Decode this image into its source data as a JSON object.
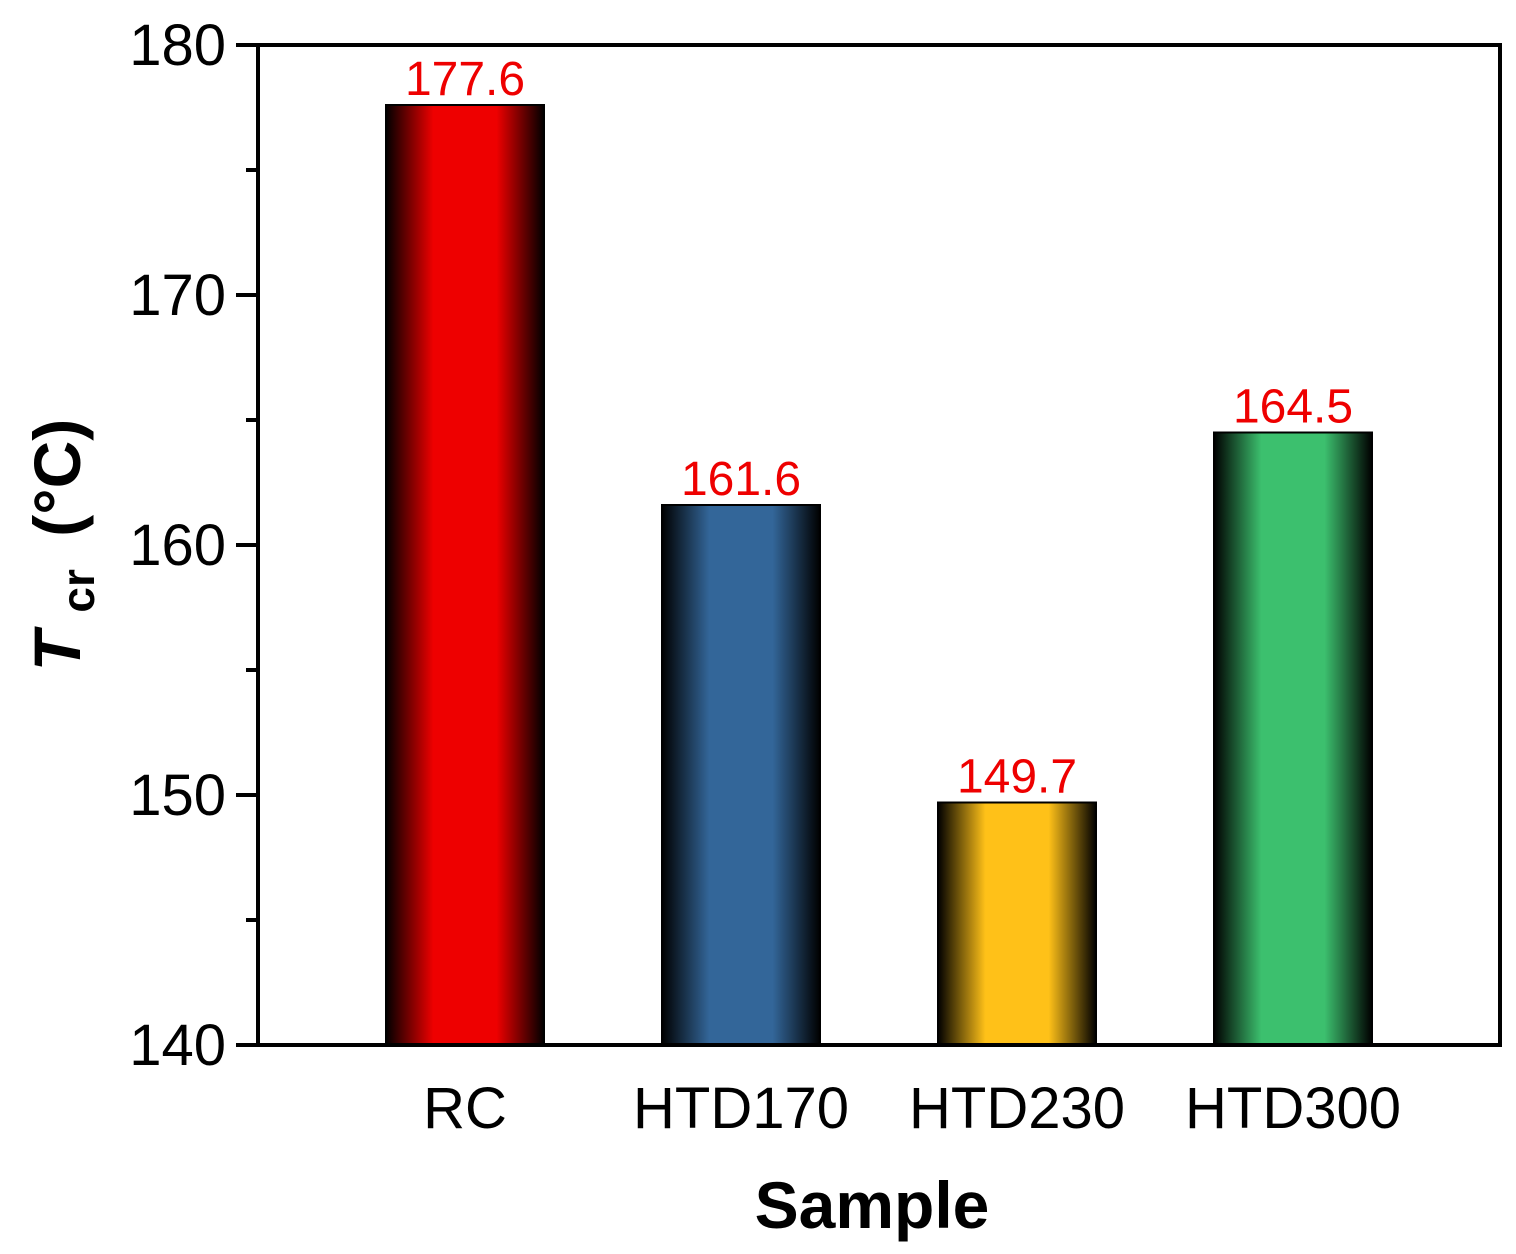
{
  "chart_data": {
    "type": "bar",
    "categories": [
      "RC",
      "HTD170",
      "HTD230",
      "HTD300"
    ],
    "values": [
      177.6,
      161.6,
      149.7,
      164.5
    ],
    "value_labels": [
      "177.6",
      "161.6",
      "149.7",
      "164.5"
    ],
    "bar_colors": [
      "#ee0000",
      "#336699",
      "#ffc118",
      "#3cc06e"
    ],
    "value_label_color": "#ee0000",
    "xlabel": "Sample",
    "ylabel": {
      "symbol": "T",
      "subscript": "cr",
      "unit": "(°C)"
    },
    "ylim": [
      140,
      180
    ],
    "yticks": [
      140,
      150,
      160,
      170,
      180
    ],
    "yticks_labels": [
      "140",
      "150",
      "160",
      "170",
      "180"
    ],
    "minor_ticks": true,
    "grid": false,
    "legend": "none"
  }
}
